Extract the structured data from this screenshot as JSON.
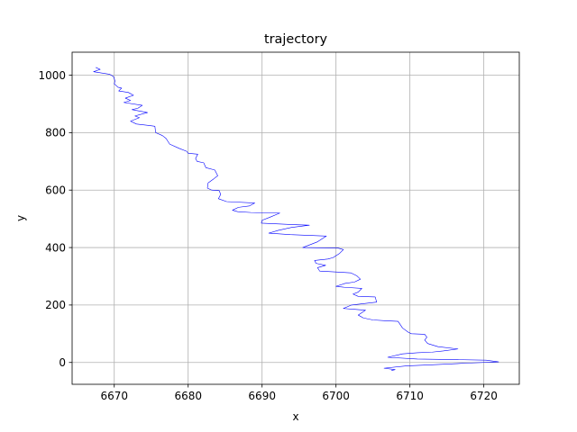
{
  "chart_data": {
    "type": "line",
    "title": "trajectory",
    "xlabel": "x",
    "ylabel": "y",
    "xlim": [
      6664.3,
      6724.8
    ],
    "ylim": [
      -76,
      1080
    ],
    "xticks": [
      6670,
      6680,
      6690,
      6700,
      6710,
      6720
    ],
    "yticks": [
      0,
      200,
      400,
      600,
      800,
      1000
    ],
    "xtick_labels": [
      "6670",
      "6680",
      "6690",
      "6700",
      "6710",
      "6720"
    ],
    "ytick_labels": [
      "0",
      "200",
      "400",
      "600",
      "800",
      "1000"
    ],
    "grid": true,
    "series": [
      {
        "color": "#0000ff",
        "points": [
          [
            6667.5,
            1027
          ],
          [
            6668.1,
            1020
          ],
          [
            6667.2,
            1012
          ],
          [
            6669.4,
            1003
          ],
          [
            6669.9,
            995
          ],
          [
            6670.1,
            980
          ],
          [
            6670.0,
            970
          ],
          [
            6670.5,
            958
          ],
          [
            6671.0,
            955
          ],
          [
            6670.6,
            945
          ],
          [
            6671.9,
            940
          ],
          [
            6672.6,
            930
          ],
          [
            6671.5,
            920
          ],
          [
            6672.2,
            912
          ],
          [
            6671.3,
            905
          ],
          [
            6673.8,
            895
          ],
          [
            6673.2,
            885
          ],
          [
            6672.4,
            880
          ],
          [
            6674.5,
            870
          ],
          [
            6672.8,
            858
          ],
          [
            6673.4,
            852
          ],
          [
            6672.2,
            840
          ],
          [
            6673.0,
            830
          ],
          [
            6674.7,
            825
          ],
          [
            6675.5,
            822
          ],
          [
            6675.6,
            800
          ],
          [
            6676.5,
            790
          ],
          [
            6677.0,
            780
          ],
          [
            6677.5,
            760
          ],
          [
            6678.8,
            745
          ],
          [
            6679.8,
            735
          ],
          [
            6680.0,
            728
          ],
          [
            6681.3,
            725
          ],
          [
            6681.0,
            710
          ],
          [
            6681.2,
            700
          ],
          [
            6682.1,
            695
          ],
          [
            6682.4,
            678
          ],
          [
            6683.6,
            670
          ],
          [
            6684.0,
            650
          ],
          [
            6683.5,
            640
          ],
          [
            6682.7,
            625
          ],
          [
            6682.6,
            607
          ],
          [
            6683.2,
            600
          ],
          [
            6684.2,
            598
          ],
          [
            6684.4,
            585
          ],
          [
            6684.1,
            570
          ],
          [
            6685.2,
            560
          ],
          [
            6689.0,
            555
          ],
          [
            6688.3,
            545
          ],
          [
            6686.8,
            540
          ],
          [
            6686.0,
            530
          ],
          [
            6686.7,
            525
          ],
          [
            6688.5,
            522
          ],
          [
            6692.4,
            520
          ],
          [
            6691.0,
            505
          ],
          [
            6690.0,
            495
          ],
          [
            6689.9,
            485
          ],
          [
            6694.2,
            480
          ],
          [
            6696.4,
            478
          ],
          [
            6694.0,
            470
          ],
          [
            6692.2,
            460
          ],
          [
            6690.9,
            450
          ],
          [
            6693.8,
            445
          ],
          [
            6698.7,
            440
          ],
          [
            6697.5,
            420
          ],
          [
            6695.5,
            400
          ],
          [
            6700.3,
            398
          ],
          [
            6701.0,
            393
          ],
          [
            6700.5,
            380
          ],
          [
            6699.6,
            365
          ],
          [
            6698.9,
            360
          ],
          [
            6697.1,
            355
          ],
          [
            6697.3,
            345
          ],
          [
            6698.6,
            338
          ],
          [
            6697.5,
            330
          ],
          [
            6697.8,
            318
          ],
          [
            6700.0,
            315
          ],
          [
            6702.0,
            312
          ],
          [
            6702.8,
            302
          ],
          [
            6703.3,
            290
          ],
          [
            6702.5,
            280
          ],
          [
            6701.2,
            275
          ],
          [
            6700.0,
            265
          ],
          [
            6701.0,
            262
          ],
          [
            6703.5,
            258
          ],
          [
            6703.0,
            245
          ],
          [
            6702.3,
            238
          ],
          [
            6703.0,
            230
          ],
          [
            6705.3,
            228
          ],
          [
            6705.5,
            210
          ],
          [
            6703.8,
            205
          ],
          [
            6702.1,
            200
          ],
          [
            6701.0,
            188
          ],
          [
            6702.5,
            185
          ],
          [
            6704.0,
            182
          ],
          [
            6703.0,
            165
          ],
          [
            6703.7,
            155
          ],
          [
            6705.0,
            148
          ],
          [
            6706.8,
            145
          ],
          [
            6708.4,
            143
          ],
          [
            6709.0,
            120
          ],
          [
            6709.8,
            105
          ],
          [
            6710.2,
            100
          ],
          [
            6712.0,
            98
          ],
          [
            6712.3,
            88
          ],
          [
            6712.0,
            78
          ],
          [
            6712.4,
            66
          ],
          [
            6713.8,
            55
          ],
          [
            6716.5,
            47
          ],
          [
            6714.5,
            40
          ],
          [
            6713.0,
            36
          ],
          [
            6711.0,
            34
          ],
          [
            6709.0,
            30
          ],
          [
            6707.0,
            18
          ],
          [
            6711.0,
            12
          ],
          [
            6716.0,
            10
          ],
          [
            6720.3,
            8
          ],
          [
            6722.0,
            2
          ],
          [
            6718.0,
            -2
          ],
          [
            6713.0,
            -8
          ],
          [
            6709.5,
            -12
          ],
          [
            6706.5,
            -20
          ],
          [
            6708.0,
            -25
          ],
          [
            6707.5,
            -28
          ]
        ]
      }
    ]
  }
}
